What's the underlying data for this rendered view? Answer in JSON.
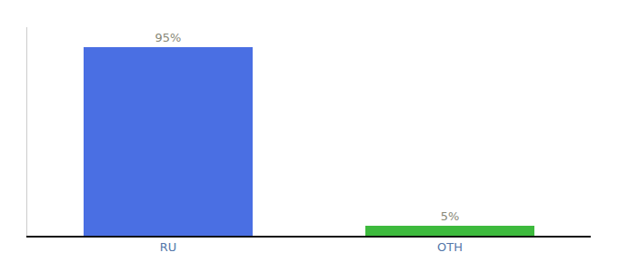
{
  "chart_data": {
    "type": "bar",
    "categories": [
      "RU",
      "OTH"
    ],
    "values": [
      95,
      5
    ],
    "value_labels": [
      "95%",
      "5%"
    ],
    "colors": [
      "#4a6fe3",
      "#3dba3d"
    ],
    "data_labels": true,
    "ylim": [
      0,
      105
    ],
    "tick_labels": "x",
    "grid": false
  }
}
